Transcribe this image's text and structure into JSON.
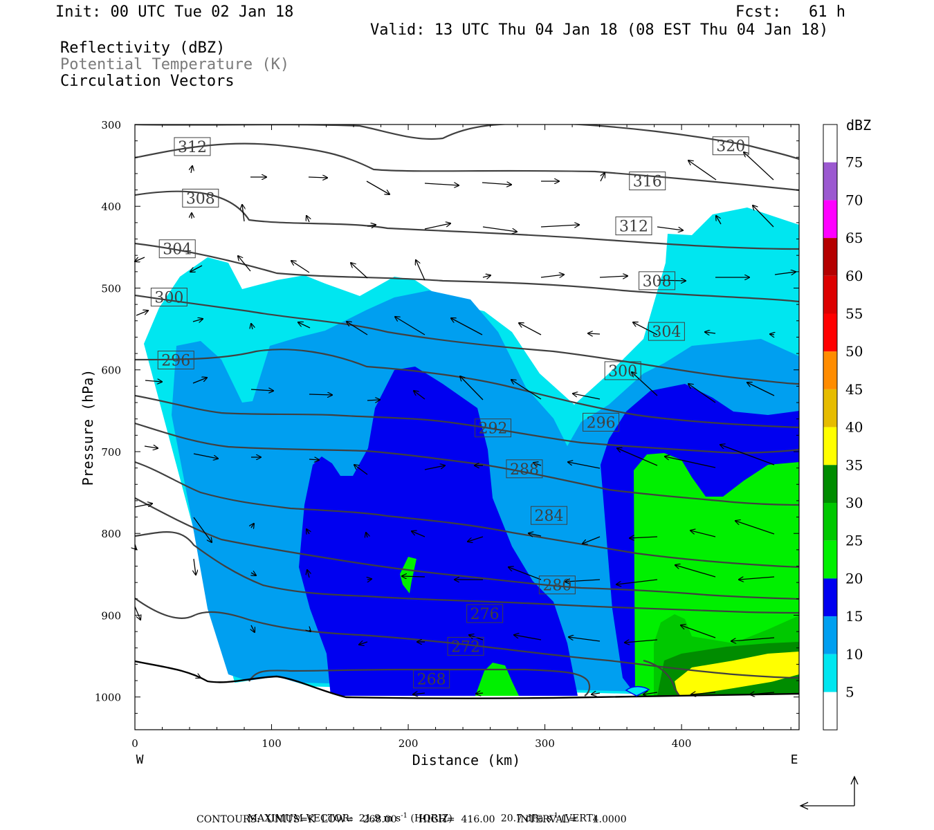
{
  "header": {
    "init": "Init: 00 UTC Tue 02 Jan 18",
    "fcst": "Fcst:   61 h",
    "valid": "Valid: 13 UTC Thu 04 Jan 18 (08 EST Thu 04 Jan 18)",
    "fields": [
      "Reflectivity (dBZ)",
      "Potential Temperature (K)",
      "Circulation Vectors"
    ]
  },
  "colors": {
    "frame": "#000000",
    "contour": "#404040",
    "dbz_5": "#00e6f0",
    "dbz_10": "#009ff0",
    "dbz_15": "#0000f0",
    "dbz_20": "#00f000",
    "dbz_25": "#00c800",
    "dbz_30": "#008c00",
    "dbz_35": "#ffff00"
  },
  "chart_data": {
    "type": "cross-section",
    "ylabel": "Pressure (hPa)",
    "xlabel": "Distance (km)",
    "x_ticks": [
      0,
      100,
      200,
      300,
      400
    ],
    "y_ticks": [
      300,
      400,
      500,
      600,
      700,
      800,
      900,
      1000
    ],
    "xlim": [
      0,
      486
    ],
    "ylim": [
      300,
      1040
    ],
    "x_end_labels": {
      "left": "W",
      "right": "E"
    },
    "legend": {
      "unit": "dBZ",
      "levels": [
        5,
        10,
        15,
        20,
        25,
        30,
        35,
        40,
        45,
        50,
        55,
        60,
        65,
        70,
        75
      ],
      "colors": [
        "#ffffff",
        "#00e6f0",
        "#009ff0",
        "#0000f0",
        "#00f000",
        "#00c800",
        "#008c00",
        "#ffff00",
        "#e6bc00",
        "#ff8c00",
        "#ff0000",
        "#dc0000",
        "#b40000",
        "#ff00ff",
        "#9b59d0",
        "#ffffff"
      ]
    },
    "theta_labels": [
      {
        "text": "312",
        "x": 42,
        "y": 327
      },
      {
        "text": "308",
        "x": 48,
        "y": 390
      },
      {
        "text": "304",
        "x": 31,
        "y": 452
      },
      {
        "text": "300",
        "x": 25,
        "y": 511
      },
      {
        "text": "296",
        "x": 30,
        "y": 588
      },
      {
        "text": "320",
        "x": 436,
        "y": 326
      },
      {
        "text": "316",
        "x": 375,
        "y": 369
      },
      {
        "text": "312",
        "x": 365,
        "y": 424
      },
      {
        "text": "308",
        "x": 382,
        "y": 491
      },
      {
        "text": "304",
        "x": 389,
        "y": 553
      },
      {
        "text": "300",
        "x": 357,
        "y": 601
      },
      {
        "text": "296",
        "x": 341,
        "y": 664
      },
      {
        "text": "292",
        "x": 262,
        "y": 671
      },
      {
        "text": "288",
        "x": 285,
        "y": 721
      },
      {
        "text": "284",
        "x": 303,
        "y": 778
      },
      {
        "text": "280",
        "x": 309,
        "y": 863
      },
      {
        "text": "276",
        "x": 256,
        "y": 898
      },
      {
        "text": "272",
        "x": 242,
        "y": 938
      },
      {
        "text": "268",
        "x": 217,
        "y": 978
      }
    ]
  },
  "footer": {
    "max_vector": "MAXIMUM VECTOR:  21.9 m s",
    "max_vector_horiz": " (HORIZ)",
    "max_vector_vert_val": "20.7 dPa s",
    "max_vector_vert": " (VERT)",
    "sup": "-1",
    "contours": "CONTOURS:  UNITS=K  LOW=   268.00       HIGH=  416.00       INTERVAL=     4.0000"
  }
}
